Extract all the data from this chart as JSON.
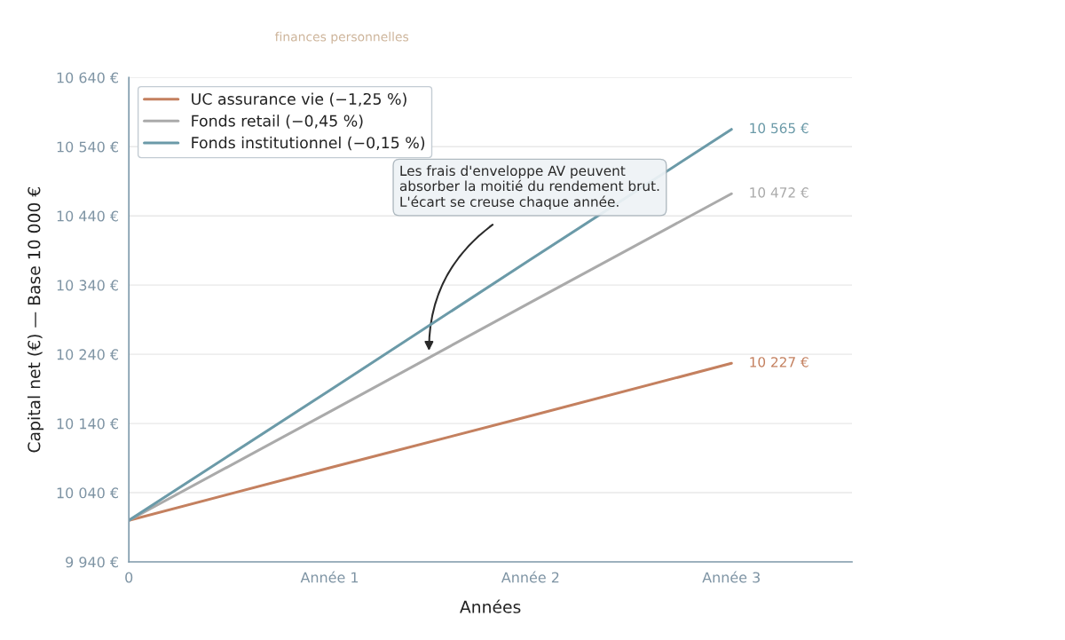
{
  "chart_data": {
    "type": "line",
    "annotations": [
      "finances personnelles",
      "Les frais d'enveloppe AV peuvent\nabsorber la moitié du rendement brut.\nL'écart se creuse chaque année."
    ],
    "xlabel": "Années",
    "ylabel": "Capital net (€) — Base 10 000 €",
    "categories": [
      "0",
      "Année 1",
      "Année 2",
      "Année 3"
    ],
    "ylim": [
      9940,
      10640
    ],
    "yticks": [
      {
        "value": 9940,
        "label": "9 940 €"
      },
      {
        "value": 10040,
        "label": "10 040 €"
      },
      {
        "value": 10140,
        "label": "10 140 €"
      },
      {
        "value": 10240,
        "label": "10 240 €"
      },
      {
        "value": 10340,
        "label": "10 340 €"
      },
      {
        "value": 10440,
        "label": "10 440 €"
      },
      {
        "value": 10540,
        "label": "10 540 €"
      },
      {
        "value": 10640,
        "label": "10 640 €"
      }
    ],
    "grid": "y",
    "legend": "top left",
    "line_style": "solid",
    "marker": "none",
    "series": [
      {
        "name": "UC assurance vie (−1,25 %)",
        "color": "#c4805f",
        "values": [
          10000,
          10076,
          10151,
          10227
        ],
        "value_labels": [
          null,
          null,
          null,
          "10 227 €"
        ]
      },
      {
        "name": "Fonds retail (−0,45 %)",
        "color": "#aaaaaa",
        "values": [
          10000,
          10157,
          10315,
          10472
        ],
        "value_labels": [
          null,
          null,
          null,
          "10 472 €"
        ]
      },
      {
        "name": "Fonds institutionnel (−0,15 %)",
        "color": "#6b9aa8",
        "values": [
          10000,
          10188,
          10377,
          10565
        ],
        "value_labels": [
          null,
          null,
          null,
          "10 565 €"
        ]
      }
    ]
  }
}
